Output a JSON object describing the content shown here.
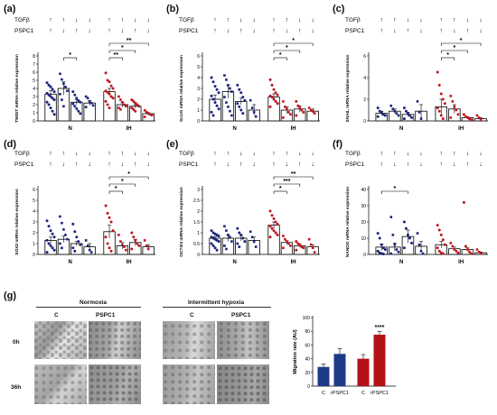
{
  "colors": {
    "normoxia": "#1a237e",
    "ih": "#c0161f",
    "bar_n": "#1e3a8a",
    "bar_ih": "#b31217"
  },
  "condition_labels": {
    "tgf_label": "TGFβ",
    "pspc_label": "PSPC1",
    "tgf": [
      "↑",
      "↑",
      "↓",
      "↓"
    ],
    "pspc": [
      "↑",
      "↓",
      "↑",
      "↓"
    ]
  },
  "chart_data": [
    {
      "panel": "(a)",
      "type": "scatter",
      "ylabel": "TWIST mRNA relative expression",
      "ylim": [
        0,
        8
      ],
      "yticks": [
        0,
        1,
        2,
        3,
        4,
        5,
        6,
        7,
        8
      ],
      "categories": [
        "N",
        "IH"
      ],
      "series": [
        {
          "group": "N",
          "means": [
            3.3,
            4.0,
            2.3,
            2.2
          ],
          "errors": [
            0.4,
            0.8,
            0.3,
            0.3
          ],
          "points": [
            [
              4.7,
              4.4,
              4.2,
              3.9,
              3.6,
              3.4,
              3.2,
              3.0,
              2.8,
              2.6,
              2.3,
              2.0,
              1.6,
              1.2,
              0.8
            ],
            [
              5.8,
              5.1,
              4.6,
              4.2,
              3.7,
              3.3,
              2.6,
              1.8
            ],
            [
              3.6,
              3.2,
              2.8,
              2.5,
              2.3,
              2.1,
              1.8,
              1.5,
              1.2,
              0.9
            ],
            [
              3.0,
              2.8,
              2.4,
              2.2,
              1.9,
              1.7
            ]
          ]
        },
        {
          "group": "IH",
          "means": [
            3.6,
            2.0,
            1.8,
            0.9
          ],
          "errors": [
            0.4,
            0.3,
            0.2,
            0.15
          ],
          "points": [
            [
              5.9,
              5.0,
              4.8,
              4.3,
              4.0,
              3.7,
              3.5,
              3.3,
              3.0,
              2.8,
              2.4,
              2.0,
              1.6
            ],
            [
              3.0,
              2.6,
              2.3,
              2.0,
              1.8,
              1.6,
              1.4
            ],
            [
              2.6,
              2.4,
              2.2,
              2.0,
              1.8,
              1.6,
              1.4,
              1.2
            ],
            [
              1.3,
              1.1,
              0.9,
              0.8,
              0.7,
              0.5
            ]
          ]
        }
      ],
      "significance": [
        {
          "label": "*",
          "group": "N",
          "from": 1,
          "to": 2
        },
        {
          "label": "**",
          "group": "IH",
          "from": 0,
          "to": 1
        },
        {
          "label": "*",
          "group": "IH",
          "from": 0,
          "to": 2
        },
        {
          "label": "**",
          "group": "IH",
          "from": 0,
          "to": 3
        }
      ]
    },
    {
      "panel": "(b)",
      "type": "scatter",
      "ylabel": "SLUG mRNA relative expression",
      "ylim": [
        0,
        6
      ],
      "yticks": [
        0,
        1,
        2,
        3,
        4,
        5,
        6
      ],
      "categories": [
        "N",
        "IH"
      ],
      "series": [
        {
          "group": "N",
          "means": [
            2.0,
            2.7,
            1.8,
            1.0
          ],
          "errors": [
            0.4,
            0.6,
            0.3,
            0.5
          ],
          "points": [
            [
              4.0,
              3.6,
              3.2,
              2.9,
              2.6,
              2.3,
              2.0,
              1.7,
              1.4,
              1.1,
              0.8,
              0.5
            ],
            [
              4.2,
              3.8,
              3.3,
              3.0,
              2.7,
              2.2,
              1.7,
              1.3,
              0.9,
              0.5
            ],
            [
              3.3,
              2.9,
              2.6,
              2.2,
              1.9,
              1.6,
              1.3,
              1.0,
              0.7
            ],
            [
              1.9,
              1.2,
              0.8,
              0.4
            ]
          ]
        },
        {
          "group": "IH",
          "means": [
            2.2,
            1.0,
            1.1,
            0.9
          ],
          "errors": [
            0.3,
            0.3,
            0.3,
            0.2
          ],
          "points": [
            [
              3.8,
              3.3,
              2.9,
              2.6,
              2.4,
              2.3,
              2.2,
              2.0,
              1.8,
              1.6,
              1.3
            ],
            [
              1.8,
              1.3,
              1.1,
              0.8,
              0.6,
              0.3
            ],
            [
              1.8,
              1.4,
              1.2,
              1.0,
              0.8,
              0.5
            ],
            [
              1.2,
              1.0,
              0.9,
              0.7
            ]
          ]
        }
      ],
      "significance": [
        {
          "label": "*",
          "group": "IH",
          "from": 0,
          "to": 1
        },
        {
          "label": "*",
          "group": "IH",
          "from": 0,
          "to": 2
        },
        {
          "label": "*",
          "group": "IH",
          "from": 0,
          "to": 3
        }
      ]
    },
    {
      "panel": "(c)",
      "type": "scatter",
      "ylabel": "SNAIL mRNA relative expression",
      "ylim": [
        0,
        6
      ],
      "yticks": [
        0,
        2,
        4,
        6
      ],
      "categories": [
        "N",
        "IH"
      ],
      "series": [
        {
          "group": "N",
          "means": [
            0.7,
            0.9,
            0.6,
            0.9
          ],
          "errors": [
            0.2,
            0.2,
            0.2,
            0.6
          ],
          "points": [
            [
              1.2,
              0.9,
              0.8,
              0.6,
              0.5,
              0.4
            ],
            [
              1.4,
              1.1,
              0.9,
              0.7,
              0.5
            ],
            [
              1.2,
              0.9,
              0.7,
              0.5,
              0.3,
              0.2
            ],
            [
              1.8,
              0.8,
              0.2
            ]
          ]
        },
        {
          "group": "IH",
          "means": [
            1.3,
            1.1,
            0.3,
            0.2
          ],
          "errors": [
            0.7,
            0.4,
            0.1,
            0.1
          ],
          "points": [
            [
              4.5,
              3.3,
              2.5,
              2.0,
              1.6,
              1.2,
              0.9,
              0.5,
              0.2
            ],
            [
              2.3,
              1.8,
              1.3,
              1.0,
              0.6,
              0.3
            ],
            [
              0.6,
              0.4,
              0.3,
              0.2,
              0.1
            ],
            [
              0.5,
              0.3,
              0.1
            ]
          ]
        }
      ],
      "significance": [
        {
          "label": "*",
          "group": "IH",
          "from": 0,
          "to": 1
        },
        {
          "label": "*",
          "group": "IH",
          "from": 0,
          "to": 2
        },
        {
          "label": "*",
          "group": "IH",
          "from": 0,
          "to": 3
        }
      ]
    },
    {
      "panel": "(d)",
      "type": "scatter",
      "ylabel": "SOX2 mRNA relative expression",
      "ylim": [
        0,
        6
      ],
      "yticks": [
        0,
        1,
        2,
        3,
        4,
        5,
        6
      ],
      "categories": [
        "N",
        "IH"
      ],
      "series": [
        {
          "group": "N",
          "means": [
            1.3,
            1.4,
            1.0,
            0.7
          ],
          "errors": [
            0.3,
            0.3,
            0.2,
            0.3
          ],
          "points": [
            [
              3.1,
              2.6,
              2.2,
              1.9,
              1.6,
              1.3,
              1.0,
              0.8,
              0.6,
              0.4,
              0.2
            ],
            [
              3.5,
              2.9,
              2.3,
              1.8,
              1.4,
              1.0,
              0.6
            ],
            [
              2.8,
              2.1,
              1.6,
              1.2,
              0.9,
              0.6,
              0.3
            ],
            [
              1.3,
              0.8,
              0.4,
              0.2
            ]
          ]
        },
        {
          "group": "IH",
          "means": [
            2.1,
            0.8,
            1.1,
            0.7
          ],
          "errors": [
            0.6,
            0.3,
            0.3,
            0.2
          ],
          "points": [
            [
              4.5,
              3.8,
              3.4,
              3.0,
              2.2,
              1.6,
              1.0,
              0.6,
              0.3
            ],
            [
              1.8,
              1.2,
              0.9,
              0.7,
              0.4
            ],
            [
              2.0,
              1.6,
              1.3,
              1.0,
              0.8,
              0.5
            ],
            [
              1.3,
              0.8,
              0.5
            ]
          ]
        }
      ],
      "significance": [
        {
          "label": "*",
          "group": "IH",
          "from": 0,
          "to": 1
        },
        {
          "label": "*",
          "group": "IH",
          "from": 0,
          "to": 2
        },
        {
          "label": "*",
          "group": "IH",
          "from": 0,
          "to": 3
        }
      ]
    },
    {
      "panel": "(e)",
      "type": "scatter",
      "ylabel": "OCT3/4 mRNA relative expression",
      "ylim": [
        0,
        3
      ],
      "yticks": [
        0.0,
        0.5,
        1.0,
        1.5,
        2.0,
        2.5,
        3.0
      ],
      "categories": [
        "N",
        "IH"
      ],
      "series": [
        {
          "group": "N",
          "means": [
            0.75,
            0.75,
            0.75,
            0.65
          ],
          "errors": [
            0.08,
            0.15,
            0.12,
            0.15
          ],
          "points": [
            [
              1.1,
              1.0,
              0.95,
              0.9,
              0.85,
              0.8,
              0.75,
              0.7,
              0.65,
              0.6,
              0.5,
              0.4,
              0.3,
              0.2
            ],
            [
              1.3,
              1.1,
              0.9,
              0.8,
              0.6,
              0.4,
              0.25
            ],
            [
              1.2,
              1.0,
              0.9,
              0.75,
              0.6,
              0.5,
              0.35
            ],
            [
              1.05,
              0.8,
              0.6,
              0.35
            ]
          ]
        },
        {
          "group": "IH",
          "means": [
            1.35,
            0.55,
            0.4,
            0.35
          ],
          "errors": [
            0.15,
            0.08,
            0.07,
            0.1
          ],
          "points": [
            [
              2.0,
              1.8,
              1.65,
              1.5,
              1.4,
              1.3,
              1.2,
              1.1,
              1.0,
              0.9,
              0.8
            ],
            [
              0.85,
              0.7,
              0.6,
              0.5,
              0.4,
              0.3
            ],
            [
              0.6,
              0.5,
              0.45,
              0.35,
              0.3,
              0.2
            ],
            [
              0.7,
              0.45,
              0.3,
              0.1
            ]
          ]
        }
      ],
      "significance": [
        {
          "label": "*",
          "group": "IH",
          "from": 0,
          "to": 1
        },
        {
          "label": "***",
          "group": "IH",
          "from": 0,
          "to": 2
        },
        {
          "label": "**",
          "group": "IH",
          "from": 0,
          "to": 3
        }
      ]
    },
    {
      "panel": "(f)",
      "type": "scatter",
      "ylabel": "NANOG mRNA relative expression",
      "ylim": [
        0,
        40
      ],
      "yticks": [
        0,
        10,
        20,
        30,
        40
      ],
      "categories": [
        "N",
        "IH"
      ],
      "series": [
        {
          "group": "N",
          "means": [
            4.5,
            4.5,
            11.0,
            5.0
          ],
          "errors": [
            2.0,
            2.5,
            4.0,
            3.0
          ],
          "points": [
            [
              13,
              10,
              6,
              4,
              3,
              2,
              1,
              0.5,
              0.3
            ],
            [
              23,
              12,
              6,
              3,
              1.5,
              0.5
            ],
            [
              20,
              16,
              12,
              10,
              7,
              4
            ],
            [
              13,
              6,
              2,
              0.5
            ]
          ]
        },
        {
          "group": "IH",
          "means": [
            6.0,
            3.5,
            3.0,
            1.0
          ],
          "errors": [
            2.0,
            1.0,
            1.0,
            0.5
          ],
          "points": [
            [
              18,
              15,
              12,
              9,
              6,
              4,
              2,
              1,
              0.5
            ],
            [
              7,
              5,
              3,
              2,
              1
            ],
            [
              32,
              5,
              3,
              1.5,
              0.5
            ],
            [
              3,
              1.5,
              0.5
            ]
          ]
        }
      ],
      "significance": [
        {
          "label": "*",
          "group": "N",
          "from": 0,
          "to": 2
        }
      ]
    },
    {
      "panel": "(g)",
      "type": "bar",
      "ylabel": "Migration rate (AU)",
      "ylim": [
        0,
        100
      ],
      "yticks": [
        0,
        20,
        40,
        60,
        80,
        100
      ],
      "categories": [
        "C",
        "rPSPC1",
        "C",
        "rPSPC1"
      ],
      "values": [
        28,
        47,
        40,
        75
      ],
      "errors": [
        4,
        8,
        6,
        5
      ],
      "bar_colors": [
        "#1e3a8a",
        "#1e3a8a",
        "#b31217",
        "#b31217"
      ],
      "significance": [
        {
          "label": "****",
          "bar": 3
        }
      ]
    }
  ],
  "panel_g": {
    "label": "(g)",
    "groups": [
      "Normoxia",
      "Intermittent hypoxia"
    ],
    "columns": [
      "C",
      "PSPC1",
      "C",
      "PSPC1"
    ],
    "rows": [
      "0h",
      "36h"
    ]
  }
}
